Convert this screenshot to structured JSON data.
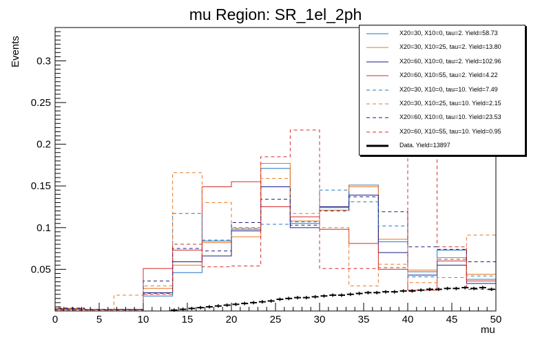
{
  "chart_data": {
    "type": "line",
    "title": "mu Region: SR_1el_2ph",
    "xlabel": "mu",
    "ylabel": "Events",
    "xlim": [
      0,
      50
    ],
    "ylim": [
      0,
      0.34
    ],
    "x_ticks": [
      0,
      5,
      10,
      15,
      20,
      25,
      30,
      35,
      40,
      45,
      50
    ],
    "y_ticks": [
      0.05,
      0.1,
      0.15,
      0.2,
      0.25,
      0.3
    ],
    "bin_edges": [
      0,
      3.33,
      6.67,
      10,
      13.33,
      16.67,
      20,
      23.33,
      26.67,
      30,
      33.33,
      36.67,
      40,
      43.33,
      46.67,
      50
    ],
    "legend_position": "top-right",
    "series": [
      {
        "name": "X20=30, X10=0, tau=2. Yield=58.73",
        "color": "#1f77c4",
        "style": "solid",
        "values": [
          0.003,
          0.002,
          0.002,
          0.018,
          0.046,
          0.084,
          0.098,
          0.171,
          0.105,
          0.124,
          0.151,
          0.083,
          0.047,
          0.073,
          0.038
        ]
      },
      {
        "name": "X20=30, X10=25, tau=2. Yield=13.80",
        "color": "#e8741e",
        "style": "solid",
        "values": [
          0.003,
          0.002,
          0.002,
          0.027,
          0.055,
          0.082,
          0.089,
          0.177,
          0.108,
          0.121,
          0.149,
          0.086,
          0.049,
          0.064,
          0.044
        ]
      },
      {
        "name": "X20=60, X10=0, tau=2. Yield=102.96",
        "color": "#1a1a80",
        "style": "solid",
        "values": [
          0.002,
          0.002,
          0.002,
          0.022,
          0.059,
          0.066,
          0.096,
          0.149,
          0.1,
          0.125,
          0.139,
          0.07,
          0.043,
          0.055,
          0.033
        ]
      },
      {
        "name": "X20=60, X10=55, tau=2. Yield=4.22",
        "color": "#d62728",
        "style": "solid",
        "values": [
          0.002,
          0.002,
          0.002,
          0.051,
          0.073,
          0.149,
          0.155,
          0.125,
          0.113,
          0.098,
          0.081,
          0.05,
          0.025,
          0.06,
          0.036
        ]
      },
      {
        "name": "X20=30, X10=0, tau=10. Yield=7.49",
        "color": "#1f77c4",
        "style": "dashed",
        "values": [
          0.003,
          0.002,
          0.002,
          0.021,
          0.117,
          0.085,
          0.1,
          0.104,
          0.107,
          0.145,
          0.131,
          0.102,
          0.041,
          0.062,
          0.042
        ]
      },
      {
        "name": "X20=30, X10=25, tau=10. Yield=2.15",
        "color": "#e8741e",
        "style": "dashed",
        "values": [
          0.004,
          0.002,
          0.019,
          0.03,
          0.166,
          0.13,
          0.099,
          0.159,
          0.117,
          0.1,
          0.03,
          0.056,
          0.034,
          0.04,
          0.091
        ]
      },
      {
        "name": "X20=60, X10=0, tau=10. Yield=23.53",
        "color": "#1a1a80",
        "style": "dashed",
        "values": [
          0.003,
          0.002,
          0.002,
          0.036,
          0.075,
          0.072,
          0.106,
          0.134,
          0.103,
          0.12,
          0.137,
          0.119,
          0.077,
          0.074,
          0.059
        ]
      },
      {
        "name": "X20=60, X10=55, tau=10. Yield=0.95",
        "color": "#d62728",
        "style": "dashed",
        "values": [
          0.001,
          0.001,
          0.001,
          0.02,
          0.08,
          0.053,
          0.054,
          0.185,
          0.217,
          0.051,
          0.051,
          0.052,
          0.189,
          0.077,
          0.026
        ]
      },
      {
        "name": "Data. Yield=13897",
        "color": "#000000",
        "style": "points",
        "x": [
          13.5,
          14.5,
          15.5,
          16.5,
          17.5,
          18.5,
          19.5,
          20.5,
          21.5,
          22.5,
          23.5,
          24.5,
          25.5,
          26.5,
          27.5,
          28.5,
          29.5,
          30.5,
          31.5,
          32.5,
          33.5,
          34.5,
          35.5,
          36.5,
          37.5,
          38.5,
          39.5,
          40.5,
          41.5,
          42.5,
          43.5,
          44.5,
          45.5,
          46.5,
          47.5,
          48.5,
          49.5
        ],
        "values": [
          0.001,
          0.002,
          0.003,
          0.004,
          0.005,
          0.006,
          0.007,
          0.008,
          0.009,
          0.01,
          0.011,
          0.012,
          0.014,
          0.015,
          0.016,
          0.016,
          0.017,
          0.018,
          0.019,
          0.019,
          0.02,
          0.021,
          0.022,
          0.022,
          0.023,
          0.023,
          0.024,
          0.024,
          0.025,
          0.026,
          0.026,
          0.027,
          0.027,
          0.028,
          0.027,
          0.028,
          0.026
        ]
      }
    ]
  }
}
